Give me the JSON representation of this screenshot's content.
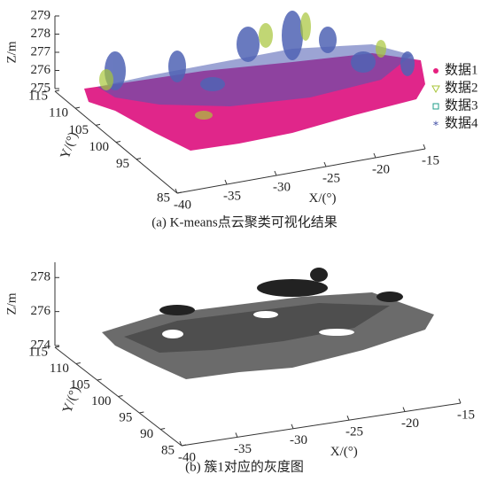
{
  "chart_data": [
    {
      "type": "scatter3d",
      "caption": "(a) K-means点云聚类可视化结果",
      "xlabel": "X/(°)",
      "ylabel": "Y/(°)",
      "zlabel": "Z/m",
      "xlim": [
        -40,
        -15
      ],
      "xticks": [
        -40,
        -35,
        -30,
        -25,
        -20,
        -15
      ],
      "ylim": [
        85,
        115
      ],
      "yticks": [
        85,
        95,
        100,
        105,
        110,
        115
      ],
      "zlim": [
        275,
        279
      ],
      "zticks": [
        275,
        276,
        277,
        278,
        279
      ],
      "legend": "right",
      "series": [
        {
          "name": "数据1",
          "color": "#e6207f",
          "marker": "circle"
        },
        {
          "name": "数据2",
          "color": "#a8c63a",
          "marker": "triangle"
        },
        {
          "name": "数据3",
          "color": "#1f9e89",
          "marker": "square"
        },
        {
          "name": "数据4",
          "color": "#3d4ba3",
          "marker": "star"
        }
      ]
    },
    {
      "type": "scatter3d",
      "caption": "(b) 簇1对应的灰度图",
      "xlabel": "X/(°)",
      "ylabel": "Y/(°)",
      "zlabel": "Z/m",
      "xlim": [
        -40,
        -15
      ],
      "xticks": [
        -40,
        -35,
        -30,
        -25,
        -20,
        -15
      ],
      "ylim": [
        85,
        115
      ],
      "yticks": [
        85,
        90,
        95,
        100,
        105,
        110,
        115
      ],
      "zlim": [
        274,
        278.9
      ],
      "zticks": [
        274,
        276,
        278
      ]
    }
  ]
}
